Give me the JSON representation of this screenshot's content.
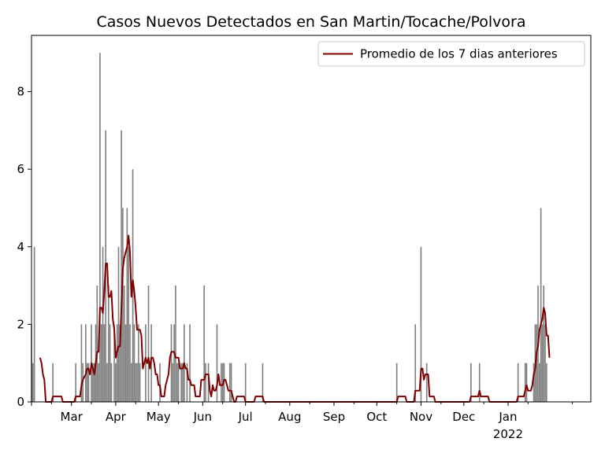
{
  "chart_data": {
    "type": "bar",
    "title": "Casos Nuevos Detectados en San Martin/Tocache/Polvora",
    "xlabel": "",
    "ylabel": "",
    "x_range": [
      "2021-02-01",
      "2022-02-28"
    ],
    "ylim": [
      0,
      9.45
    ],
    "y_ticks": [
      0,
      2,
      4,
      6,
      8
    ],
    "x_ticks": [
      {
        "date": "2021-03-01",
        "label": "Mar"
      },
      {
        "date": "2021-04-01",
        "label": "Apr"
      },
      {
        "date": "2021-05-01",
        "label": "May"
      },
      {
        "date": "2021-06-01",
        "label": "Jun"
      },
      {
        "date": "2021-07-01",
        "label": "Jul"
      },
      {
        "date": "2021-08-01",
        "label": "Aug"
      },
      {
        "date": "2021-09-01",
        "label": "Sep"
      },
      {
        "date": "2021-10-01",
        "label": "Oct"
      },
      {
        "date": "2021-11-01",
        "label": "Nov"
      },
      {
        "date": "2021-12-01",
        "label": "Dec"
      },
      {
        "date": "2022-01-01",
        "label": "Jan"
      }
    ],
    "x_year_label": {
      "date": "2022-01-01",
      "label": "2022"
    },
    "grid": false,
    "legend_position": "top-right",
    "bar_color": "#808080",
    "line_color": "#800000",
    "series": [
      {
        "name": "",
        "kind": "bar",
        "points": [
          [
            "2021-02-01",
            2
          ],
          [
            "2021-02-02",
            1
          ],
          [
            "2021-02-03",
            4
          ],
          [
            "2021-02-16",
            1
          ],
          [
            "2021-03-04",
            1
          ],
          [
            "2021-03-08",
            2
          ],
          [
            "2021-03-09",
            1
          ],
          [
            "2021-03-11",
            2
          ],
          [
            "2021-03-12",
            1
          ],
          [
            "2021-03-13",
            1
          ],
          [
            "2021-03-15",
            2
          ],
          [
            "2021-03-16",
            1
          ],
          [
            "2021-03-17",
            1
          ],
          [
            "2021-03-18",
            2
          ],
          [
            "2021-03-19",
            3
          ],
          [
            "2021-03-20",
            1
          ],
          [
            "2021-03-21",
            9
          ],
          [
            "2021-03-22",
            2
          ],
          [
            "2021-03-23",
            4
          ],
          [
            "2021-03-24",
            2
          ],
          [
            "2021-03-25",
            7
          ],
          [
            "2021-03-26",
            1
          ],
          [
            "2021-03-27",
            3
          ],
          [
            "2021-03-28",
            2
          ],
          [
            "2021-03-29",
            1
          ],
          [
            "2021-03-31",
            2
          ],
          [
            "2021-04-01",
            1
          ],
          [
            "2021-04-02",
            2
          ],
          [
            "2021-04-03",
            4
          ],
          [
            "2021-04-04",
            2
          ],
          [
            "2021-04-05",
            7
          ],
          [
            "2021-04-06",
            5
          ],
          [
            "2021-04-07",
            3
          ],
          [
            "2021-04-08",
            2
          ],
          [
            "2021-04-09",
            5
          ],
          [
            "2021-04-10",
            4
          ],
          [
            "2021-04-11",
            2
          ],
          [
            "2021-04-12",
            1
          ],
          [
            "2021-04-13",
            6
          ],
          [
            "2021-04-14",
            2
          ],
          [
            "2021-04-15",
            1
          ],
          [
            "2021-04-16",
            1
          ],
          [
            "2021-04-17",
            2
          ],
          [
            "2021-04-18",
            1
          ],
          [
            "2021-04-22",
            2
          ],
          [
            "2021-04-24",
            3
          ],
          [
            "2021-04-26",
            2
          ],
          [
            "2021-05-02",
            1
          ],
          [
            "2021-05-10",
            2
          ],
          [
            "2021-05-11",
            1
          ],
          [
            "2021-05-12",
            2
          ],
          [
            "2021-05-13",
            3
          ],
          [
            "2021-05-14",
            1
          ],
          [
            "2021-05-15",
            1
          ],
          [
            "2021-05-17",
            1
          ],
          [
            "2021-05-18",
            1
          ],
          [
            "2021-05-19",
            2
          ],
          [
            "2021-05-21",
            1
          ],
          [
            "2021-05-23",
            2
          ],
          [
            "2021-06-02",
            3
          ],
          [
            "2021-06-03",
            1
          ],
          [
            "2021-06-05",
            1
          ],
          [
            "2021-06-11",
            2
          ],
          [
            "2021-06-14",
            1
          ],
          [
            "2021-06-15",
            1
          ],
          [
            "2021-06-16",
            1
          ],
          [
            "2021-06-20",
            1
          ],
          [
            "2021-06-21",
            1
          ],
          [
            "2021-07-01",
            1
          ],
          [
            "2021-07-13",
            1
          ],
          [
            "2021-10-15",
            1
          ],
          [
            "2021-10-28",
            2
          ],
          [
            "2021-11-01",
            4
          ],
          [
            "2021-11-05",
            1
          ],
          [
            "2021-12-06",
            1
          ],
          [
            "2021-12-12",
            1
          ],
          [
            "2022-01-08",
            1
          ],
          [
            "2022-01-13",
            1
          ],
          [
            "2022-01-14",
            1
          ],
          [
            "2022-01-19",
            1
          ],
          [
            "2022-01-20",
            2
          ],
          [
            "2022-01-21",
            2
          ],
          [
            "2022-01-22",
            3
          ],
          [
            "2022-01-23",
            1
          ],
          [
            "2022-01-24",
            5
          ],
          [
            "2022-01-25",
            2
          ],
          [
            "2022-01-26",
            3
          ],
          [
            "2022-01-27",
            2
          ],
          [
            "2022-01-28",
            1
          ]
        ]
      },
      {
        "name": "Promedio de los 7 dias anteriores",
        "kind": "line",
        "points": [
          [
            "2021-02-07",
            1.14
          ],
          [
            "2021-02-08",
            1.0
          ],
          [
            "2021-02-09",
            0.71
          ],
          [
            "2021-02-10",
            0.57
          ],
          [
            "2021-02-11",
            0
          ],
          [
            "2021-02-15",
            0
          ],
          [
            "2021-02-16",
            0.14
          ],
          [
            "2021-02-22",
            0.14
          ],
          [
            "2021-02-23",
            0
          ],
          [
            "2021-03-03",
            0
          ],
          [
            "2021-03-04",
            0.14
          ],
          [
            "2021-03-07",
            0.14
          ],
          [
            "2021-03-08",
            0.43
          ],
          [
            "2021-03-09",
            0.57
          ],
          [
            "2021-03-11",
            0.71
          ],
          [
            "2021-03-12",
            0.86
          ],
          [
            "2021-03-13",
            0.86
          ],
          [
            "2021-03-14",
            0.71
          ],
          [
            "2021-03-15",
            1.0
          ],
          [
            "2021-03-16",
            0.86
          ],
          [
            "2021-03-17",
            0.71
          ],
          [
            "2021-03-18",
            1.0
          ],
          [
            "2021-03-19",
            1.29
          ],
          [
            "2021-03-20",
            1.29
          ],
          [
            "2021-03-21",
            2.43
          ],
          [
            "2021-03-22",
            2.43
          ],
          [
            "2021-03-23",
            2.29
          ],
          [
            "2021-03-24",
            2.86
          ],
          [
            "2021-03-25",
            3.57
          ],
          [
            "2021-03-26",
            3.57
          ],
          [
            "2021-03-27",
            2.71
          ],
          [
            "2021-03-28",
            2.71
          ],
          [
            "2021-03-29",
            2.86
          ],
          [
            "2021-03-30",
            2.14
          ],
          [
            "2021-03-31",
            1.86
          ],
          [
            "2021-04-01",
            1.14
          ],
          [
            "2021-04-02",
            1.29
          ],
          [
            "2021-04-03",
            1.43
          ],
          [
            "2021-04-04",
            1.43
          ],
          [
            "2021-04-05",
            2.43
          ],
          [
            "2021-04-06",
            3.43
          ],
          [
            "2021-04-07",
            3.71
          ],
          [
            "2021-04-08",
            3.86
          ],
          [
            "2021-04-09",
            4.0
          ],
          [
            "2021-04-10",
            4.29
          ],
          [
            "2021-04-11",
            3.86
          ],
          [
            "2021-04-12",
            2.71
          ],
          [
            "2021-04-13",
            3.14
          ],
          [
            "2021-04-14",
            2.86
          ],
          [
            "2021-04-15",
            2.43
          ],
          [
            "2021-04-16",
            1.86
          ],
          [
            "2021-04-17",
            1.86
          ],
          [
            "2021-04-18",
            1.86
          ],
          [
            "2021-04-19",
            1.71
          ],
          [
            "2021-04-20",
            0.86
          ],
          [
            "2021-04-21",
            1.0
          ],
          [
            "2021-04-22",
            1.14
          ],
          [
            "2021-04-23",
            1.0
          ],
          [
            "2021-04-24",
            1.14
          ],
          [
            "2021-04-25",
            0.86
          ],
          [
            "2021-04-26",
            1.14
          ],
          [
            "2021-04-27",
            1.14
          ],
          [
            "2021-04-28",
            1.0
          ],
          [
            "2021-04-29",
            0.71
          ],
          [
            "2021-04-30",
            0.71
          ],
          [
            "2021-05-01",
            0.43
          ],
          [
            "2021-05-02",
            0.43
          ],
          [
            "2021-05-03",
            0.14
          ],
          [
            "2021-05-05",
            0.14
          ],
          [
            "2021-05-06",
            0.43
          ],
          [
            "2021-05-07",
            0.57
          ],
          [
            "2021-05-08",
            0.71
          ],
          [
            "2021-05-09",
            1.14
          ],
          [
            "2021-05-10",
            1.29
          ],
          [
            "2021-05-12",
            1.29
          ],
          [
            "2021-05-13",
            1.14
          ],
          [
            "2021-05-15",
            1.14
          ],
          [
            "2021-05-16",
            0.86
          ],
          [
            "2021-05-18",
            0.86
          ],
          [
            "2021-05-19",
            1.0
          ],
          [
            "2021-05-20",
            0.86
          ],
          [
            "2021-05-21",
            0.86
          ],
          [
            "2021-05-22",
            0.57
          ],
          [
            "2021-05-23",
            0.57
          ],
          [
            "2021-05-24",
            0.43
          ],
          [
            "2021-05-26",
            0.43
          ],
          [
            "2021-05-27",
            0.14
          ],
          [
            "2021-05-30",
            0.14
          ],
          [
            "2021-05-31",
            0.57
          ],
          [
            "2021-06-01",
            0.57
          ],
          [
            "2021-06-02",
            0.57
          ],
          [
            "2021-06-03",
            0.71
          ],
          [
            "2021-06-05",
            0.71
          ],
          [
            "2021-06-06",
            0.29
          ],
          [
            "2021-06-07",
            0.14
          ],
          [
            "2021-06-08",
            0.43
          ],
          [
            "2021-06-09",
            0.29
          ],
          [
            "2021-06-10",
            0.29
          ],
          [
            "2021-06-11",
            0.43
          ],
          [
            "2021-06-12",
            0.71
          ],
          [
            "2021-06-13",
            0.43
          ],
          [
            "2021-06-14",
            0.43
          ],
          [
            "2021-06-15",
            0.43
          ],
          [
            "2021-06-16",
            0.57
          ],
          [
            "2021-06-17",
            0.57
          ],
          [
            "2021-06-18",
            0.43
          ],
          [
            "2021-06-19",
            0.29
          ],
          [
            "2021-06-21",
            0.29
          ],
          [
            "2021-06-22",
            0.14
          ],
          [
            "2021-06-23",
            0
          ],
          [
            "2021-06-24",
            0
          ],
          [
            "2021-06-25",
            0.14
          ],
          [
            "2021-06-30",
            0.14
          ],
          [
            "2021-07-01",
            0
          ],
          [
            "2021-07-07",
            0
          ],
          [
            "2021-07-08",
            0.14
          ],
          [
            "2021-07-13",
            0.14
          ],
          [
            "2021-07-14",
            0
          ],
          [
            "2021-10-15",
            0
          ],
          [
            "2021-10-16",
            0.14
          ],
          [
            "2021-10-21",
            0.14
          ],
          [
            "2021-10-22",
            0
          ],
          [
            "2021-10-27",
            0
          ],
          [
            "2021-10-28",
            0.29
          ],
          [
            "2021-10-31",
            0.29
          ],
          [
            "2021-11-01",
            0.86
          ],
          [
            "2021-11-02",
            0.86
          ],
          [
            "2021-11-03",
            0.57
          ],
          [
            "2021-11-04",
            0.71
          ],
          [
            "2021-11-06",
            0.71
          ],
          [
            "2021-11-07",
            0.14
          ],
          [
            "2021-11-10",
            0.14
          ],
          [
            "2021-11-11",
            0
          ],
          [
            "2021-12-05",
            0
          ],
          [
            "2021-12-06",
            0.14
          ],
          [
            "2021-12-11",
            0.14
          ],
          [
            "2021-12-12",
            0.29
          ],
          [
            "2021-12-13",
            0.14
          ],
          [
            "2021-12-18",
            0.14
          ],
          [
            "2021-12-19",
            0
          ],
          [
            "2022-01-07",
            0
          ],
          [
            "2022-01-08",
            0.14
          ],
          [
            "2022-01-12",
            0.14
          ],
          [
            "2022-01-13",
            0.29
          ],
          [
            "2022-01-14",
            0.43
          ],
          [
            "2022-01-15",
            0.29
          ],
          [
            "2022-01-17",
            0.29
          ],
          [
            "2022-01-18",
            0.43
          ],
          [
            "2022-01-19",
            0.71
          ],
          [
            "2022-01-20",
            0.86
          ],
          [
            "2022-01-21",
            1.29
          ],
          [
            "2022-01-22",
            1.43
          ],
          [
            "2022-01-23",
            1.86
          ],
          [
            "2022-01-24",
            2.0
          ],
          [
            "2022-01-25",
            2.14
          ],
          [
            "2022-01-26",
            2.43
          ],
          [
            "2022-01-27",
            2.29
          ],
          [
            "2022-01-28",
            1.71
          ],
          [
            "2022-01-29",
            1.71
          ],
          [
            "2022-01-30",
            1.14
          ]
        ]
      }
    ]
  }
}
